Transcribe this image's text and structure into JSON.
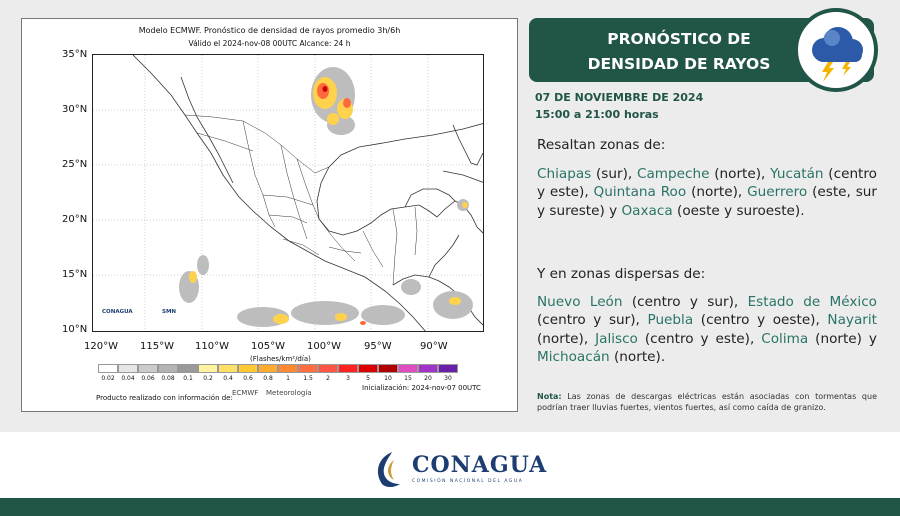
{
  "map": {
    "title_line1": "Modelo ECMWF. Pronóstico de densidad de rayos promedio 3h/6h",
    "title_line2": "Válido el 2024-nov-08 00UTC    Alcance: 24 h",
    "lat_labels": [
      "35°N",
      "30°N",
      "25°N",
      "20°N",
      "15°N",
      "10°N"
    ],
    "lon_labels": [
      "120°W",
      "115°W",
      "110°W",
      "105°W",
      "100°W",
      "95°W",
      "90°W"
    ],
    "scale_unit": "(Flashes/km²/día)",
    "scale_values": [
      "0.02",
      "0.04",
      "0.06",
      "0.08",
      "0.1",
      "0.2",
      "0.4",
      "0.6",
      "0.8",
      "1",
      "1.5",
      "2",
      "3",
      "5",
      "10",
      "15",
      "20",
      "30"
    ],
    "scale_colors": [
      "#ffffff",
      "#e6e6e6",
      "#cccccc",
      "#b3b3b3",
      "#9a9a9a",
      "#fff2a0",
      "#ffe066",
      "#ffc933",
      "#ffaa33",
      "#ff8833",
      "#ff6e40",
      "#ff5544",
      "#ff2222",
      "#dd0000",
      "#b00000",
      "#e04ec2",
      "#a033c8",
      "#6a1fa8"
    ],
    "initialization": "Inicialización: 2024-nov-07 00UTC",
    "credit": "Producto realizado con información de:",
    "logos": [
      "CONAGUA",
      "SMN",
      "ECMWF",
      "Meteorología"
    ]
  },
  "header": {
    "title_line1": "PRONÓSTICO DE",
    "title_line2": "DENSIDAD DE RAYOS",
    "icon": "storm-cloud-lightning-icon"
  },
  "date": "07 DE NOVIEMBRE DE 2024",
  "hours": "15:00 a 21:00 horas",
  "section1": {
    "heading": "Resaltan zonas de:",
    "items": [
      {
        "state": "Chiapas",
        "detail": " (sur), "
      },
      {
        "state": "Campeche",
        "detail": " (norte), "
      },
      {
        "state": "Yucatán",
        "detail": " (centro y este), "
      },
      {
        "state": "Quintana Roo",
        "detail": " (norte), "
      },
      {
        "state": "Guerrero",
        "detail": " (este, sur y sureste) y "
      },
      {
        "state": "Oaxaca",
        "detail": " (oeste y suroeste)."
      }
    ]
  },
  "section2": {
    "heading": "Y en zonas dispersas de:",
    "items": [
      {
        "state": "Nuevo León",
        "detail": " (centro y sur), "
      },
      {
        "state": "Estado de México",
        "detail": " (centro y sur), "
      },
      {
        "state": "Puebla",
        "detail": " (centro y oeste), "
      },
      {
        "state": "Nayarit",
        "detail": " (norte), "
      },
      {
        "state": "Jalisco",
        "detail": " (centro y este), "
      },
      {
        "state": "Colima",
        "detail": " (norte) y "
      },
      {
        "state": "Michoacán",
        "detail": " (norte)."
      }
    ]
  },
  "nota": {
    "label": "Nota:",
    "text": " Las zonas de descargas eléctricas están asociadas con tormentas que podrían traer lluvias fuertes, vientos fuertes, así como caída de granizo."
  },
  "footer": {
    "logo_text": "CONAGUA",
    "logo_subtext": "COMISIÓN NACIONAL DEL AGUA"
  },
  "colors": {
    "brand_green": "#205548",
    "state_highlight": "#2a7367",
    "brand_blue": "#1d3d72"
  }
}
